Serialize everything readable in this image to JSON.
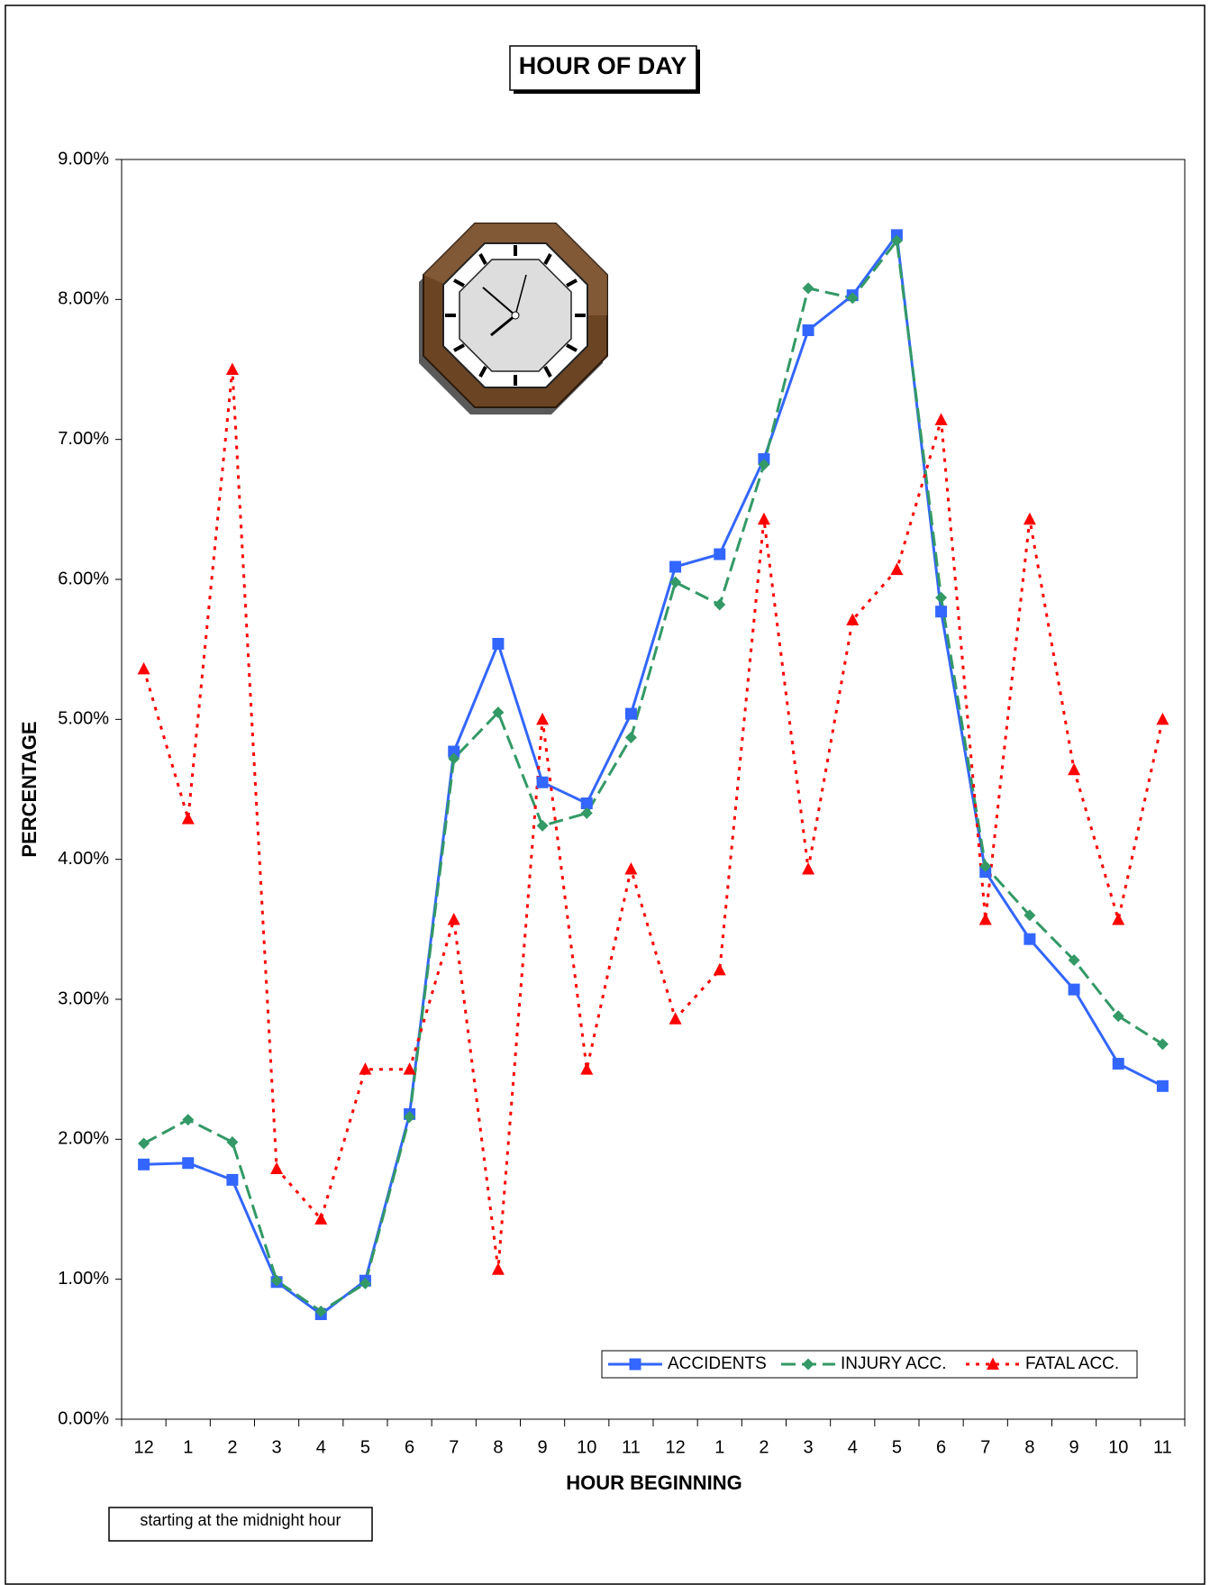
{
  "chart_data": {
    "type": "line",
    "title": "HOUR OF DAY",
    "x_label": "HOUR BEGINNING",
    "y_label": "PERCENTAGE",
    "annotation": "starting at the midnight hour",
    "categories": [
      "12",
      "1",
      "2",
      "3",
      "4",
      "5",
      "6",
      "7",
      "8",
      "9",
      "10",
      "11",
      "12",
      "1",
      "2",
      "3",
      "4",
      "5",
      "6",
      "7",
      "8",
      "9",
      "10",
      "11"
    ],
    "ylim": [
      0,
      9
    ],
    "yticks": [
      {
        "value": 0,
        "label": "0.00%"
      },
      {
        "value": 1,
        "label": "1.00%"
      },
      {
        "value": 2,
        "label": "2.00%"
      },
      {
        "value": 3,
        "label": "3.00%"
      },
      {
        "value": 4,
        "label": "4.00%"
      },
      {
        "value": 5,
        "label": "5.00%"
      },
      {
        "value": 6,
        "label": "6.00%"
      },
      {
        "value": 7,
        "label": "7.00%"
      },
      {
        "value": 8,
        "label": "8.00%"
      },
      {
        "value": 9,
        "label": "9.00%"
      }
    ],
    "grid": false,
    "legend": "bottom-right",
    "series": [
      {
        "name": "ACCIDENTS",
        "color": "#3366ff",
        "marker": "square",
        "line_style": "solid",
        "values": [
          1.82,
          1.83,
          1.71,
          0.98,
          0.75,
          0.99,
          2.18,
          4.77,
          5.54,
          4.55,
          4.4,
          5.04,
          6.09,
          6.18,
          6.86,
          7.78,
          8.03,
          8.46,
          5.77,
          3.91,
          3.43,
          3.07,
          2.54,
          2.38
        ]
      },
      {
        "name": "INJURY ACC.",
        "color": "#339966",
        "marker": "diamond",
        "line_style": "dashed",
        "values": [
          1.97,
          2.14,
          1.98,
          0.99,
          0.77,
          0.97,
          2.16,
          4.72,
          5.05,
          4.24,
          4.33,
          4.87,
          5.98,
          5.82,
          6.82,
          8.08,
          8.01,
          8.42,
          5.87,
          3.95,
          3.6,
          3.28,
          2.88,
          2.68
        ]
      },
      {
        "name": "FATAL ACC.",
        "color": "#ff0000",
        "marker": "triangle",
        "line_style": "dotted",
        "values": [
          5.36,
          4.29,
          7.5,
          1.79,
          1.43,
          2.5,
          2.5,
          3.57,
          1.07,
          5.0,
          2.5,
          3.93,
          2.86,
          3.21,
          6.43,
          3.93,
          5.71,
          6.07,
          7.14,
          3.57,
          6.43,
          4.64,
          3.57,
          5.0
        ]
      }
    ]
  }
}
